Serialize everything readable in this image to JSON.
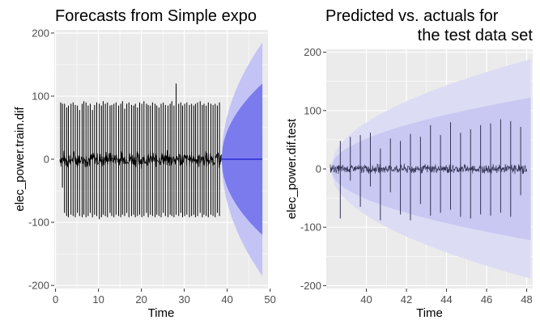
{
  "chart_data": [
    {
      "type": "line",
      "title": "Forecasts from Simple expo",
      "xlabel": "Time",
      "ylabel": "elec_power.train.dif",
      "xlim": [
        -0.3,
        49.5
      ],
      "ylim": [
        -205,
        205
      ],
      "x_ticks": [
        0,
        10,
        20,
        30,
        40,
        50
      ],
      "y_ticks": [
        -200,
        -100,
        0,
        100,
        200
      ],
      "series": [
        {
          "kind": "observed",
          "x_range": [
            1,
            38.7
          ],
          "spike_x": [
            1.2,
            1.6,
            2.1,
            2.6,
            3.0,
            3.6,
            4.1,
            4.6,
            5.1,
            5.6,
            6.2,
            6.6,
            7.1,
            7.6,
            8.1,
            8.6,
            9.1,
            9.6,
            10.2,
            10.7,
            11.1,
            11.6,
            12.1,
            12.7,
            13.1,
            13.6,
            14.1,
            14.7,
            15.2,
            15.6,
            16.1,
            16.6,
            17.1,
            17.7,
            18.2,
            18.6,
            19.1,
            19.6,
            20.1,
            20.6,
            21.2,
            21.6,
            22.1,
            22.6,
            23.2,
            23.6,
            24.1,
            24.6,
            25.1,
            25.6,
            26.2,
            26.7,
            27.1,
            27.6,
            28.1,
            28.7,
            29.2,
            29.6,
            30.1,
            30.6,
            31.2,
            31.7,
            32.2,
            32.6,
            33.1,
            33.7,
            34.2,
            34.6,
            35.1,
            35.6,
            36.2,
            36.7,
            37.2,
            37.7,
            38.2
          ],
          "spike_high": [
            90,
            88,
            88,
            82,
            85,
            88,
            90,
            86,
            85,
            78,
            88,
            92,
            90,
            85,
            88,
            78,
            86,
            90,
            88,
            85,
            92,
            88,
            90,
            85,
            86,
            88,
            90,
            85,
            88,
            92,
            80,
            88,
            90,
            86,
            85,
            88,
            82,
            90,
            88,
            92,
            88,
            86,
            85,
            90,
            88,
            85,
            82,
            88,
            90,
            86,
            85,
            88,
            92,
            85,
            120,
            88,
            90,
            85,
            88,
            90,
            86,
            88,
            85,
            88,
            90,
            92,
            86,
            88,
            85,
            90,
            88,
            86,
            88,
            85,
            90
          ],
          "spike_low": [
            -5,
            -45,
            -85,
            -90,
            -92,
            -88,
            -90,
            -92,
            -85,
            -90,
            -92,
            -88,
            -92,
            -90,
            -85,
            -92,
            -88,
            -90,
            -95,
            -92,
            -88,
            -90,
            -92,
            -85,
            -90,
            -92,
            -88,
            -90,
            -92,
            -88,
            -90,
            -85,
            -92,
            -90,
            -88,
            -92,
            -90,
            -88,
            -92,
            -90,
            -85,
            -92,
            -88,
            -90,
            -92,
            -88,
            -90,
            -92,
            -85,
            -90,
            -92,
            -88,
            -90,
            -92,
            -88,
            -90,
            -85,
            -92,
            -90,
            -88,
            -92,
            -90,
            -88,
            -92,
            -90,
            -85,
            -92,
            -88,
            -90,
            -92,
            -88,
            -90,
            -92,
            -85,
            -90
          ]
        },
        {
          "kind": "point_forecast",
          "x": [
            38.7,
            48.2
          ],
          "y": [
            0,
            0
          ]
        },
        {
          "kind": "band_80",
          "x": [
            38.7,
            48.2
          ],
          "upper": [
            0,
            120
          ],
          "lower": [
            0,
            -120
          ]
        },
        {
          "kind": "band_95",
          "x": [
            38.7,
            48.2
          ],
          "upper": [
            0,
            185
          ],
          "lower": [
            0,
            -185
          ]
        }
      ],
      "colors": {
        "panel": "#ebebeb",
        "grid": "#ffffff",
        "observed": "#000000",
        "forecast": "#0000cc",
        "band_80": "#7b7bee",
        "band_95": "#c3c3f6"
      }
    },
    {
      "type": "line",
      "title_line1": "Predicted vs. actuals for",
      "title_line2": "the test data set",
      "xlabel": "Time",
      "ylabel": "elec_power.dif.test",
      "xlim": [
        38.0,
        48.3
      ],
      "ylim": [
        -205,
        205
      ],
      "x_ticks": [
        40,
        42,
        44,
        46,
        48
      ],
      "y_ticks": [
        -200,
        -100,
        0,
        100,
        200
      ],
      "series": [
        {
          "kind": "observed",
          "x_range": [
            38.2,
            48.0
          ],
          "spike_x": [
            38.7,
            39.2,
            39.7,
            40.2,
            40.7,
            41.2,
            41.7,
            42.2,
            42.7,
            43.2,
            43.7,
            44.2,
            44.7,
            45.2,
            45.7,
            46.2,
            46.7,
            47.2,
            47.7
          ],
          "spike_high": [
            48,
            55,
            58,
            62,
            35,
            52,
            48,
            60,
            55,
            75,
            58,
            80,
            62,
            68,
            75,
            78,
            85,
            82,
            72
          ],
          "spike_low": [
            -85,
            -20,
            -65,
            -30,
            -88,
            -40,
            -78,
            -88,
            -60,
            -80,
            -75,
            -70,
            -82,
            -85,
            -78,
            -80,
            -75,
            -82,
            -45
          ]
        },
        {
          "kind": "band_80",
          "x": [
            38.2,
            48.2
          ],
          "upper": [
            0,
            122
          ],
          "lower": [
            0,
            -122
          ]
        },
        {
          "kind": "band_95",
          "x": [
            38.2,
            48.2
          ],
          "upper": [
            0,
            188
          ],
          "lower": [
            0,
            -188
          ]
        }
      ],
      "colors": {
        "panel": "#ebebeb",
        "grid": "#ffffff",
        "observed": "#333355",
        "band_80": "#c8c8f2",
        "band_95": "#dcdcf4"
      }
    }
  ]
}
